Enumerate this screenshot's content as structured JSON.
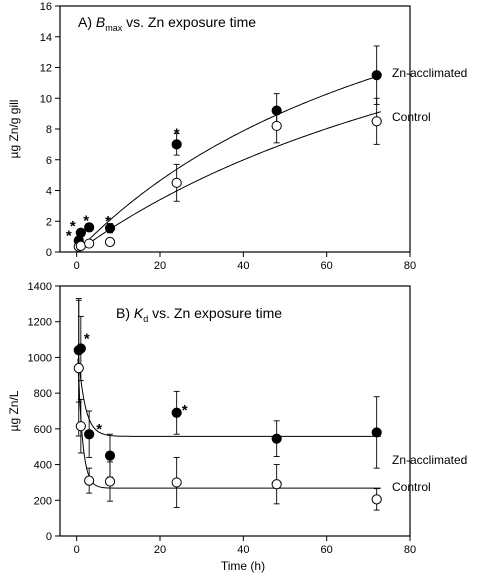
{
  "chart_data": [
    {
      "type": "scatter",
      "title_prefix": "A) ",
      "title_symbol": "B",
      "title_subscript": "max",
      "title_suffix": " vs. Zn exposure time",
      "xlabel": "",
      "ylabel": "µg Zn/g gill",
      "xlim": [
        -4,
        80
      ],
      "ylim": [
        0,
        16
      ],
      "xticks": [
        "0",
        "20",
        "40",
        "60",
        "80"
      ],
      "yticks": [
        "0",
        "2",
        "4",
        "6",
        "8",
        "10",
        "12",
        "14",
        "16"
      ],
      "grid": false,
      "series": [
        {
          "name": "Zn-acclimated",
          "marker": "filled",
          "x": [
            0.5,
            1,
            3,
            8,
            24,
            48,
            72
          ],
          "y": [
            0.75,
            1.25,
            1.6,
            1.55,
            7.0,
            9.2,
            11.5
          ],
          "err": [
            0.15,
            0.2,
            0.25,
            0.3,
            0.7,
            1.1,
            1.9
          ],
          "significant": [
            true,
            true,
            true,
            true,
            true,
            false,
            false
          ],
          "fit": {
            "model": "ymax*x/(k+x)",
            "ymax": 26,
            "k": 92
          }
        },
        {
          "name": "Control",
          "marker": "open",
          "x": [
            0.5,
            1,
            3,
            8,
            24,
            48,
            72
          ],
          "y": [
            0.35,
            0.4,
            0.55,
            0.65,
            4.5,
            8.2,
            8.5
          ],
          "err": [
            0.1,
            0.1,
            0.15,
            0.2,
            1.2,
            1.1,
            1.5
          ],
          "fit": {
            "model": "ymax*x/(k+x)",
            "ymax": 25,
            "k": 127
          }
        }
      ]
    },
    {
      "type": "scatter",
      "title_prefix": "B) ",
      "title_symbol": "K",
      "title_subscript": "d",
      "title_suffix": " vs. Zn exposure time",
      "xlabel": "Time (h)",
      "ylabel": "µg Zn/L",
      "xlim": [
        -4,
        80
      ],
      "ylim": [
        0,
        1400
      ],
      "xticks": [
        "0",
        "20",
        "40",
        "60",
        "80"
      ],
      "yticks": [
        "0",
        "200",
        "400",
        "600",
        "800",
        "1000",
        "1200",
        "1400"
      ],
      "grid": false,
      "series": [
        {
          "name": "Zn-acclimated",
          "marker": "filled",
          "x": [
            0.5,
            1,
            3,
            8,
            24,
            48,
            72
          ],
          "y": [
            1040,
            1050,
            570,
            450,
            690,
            545,
            580
          ],
          "err": [
            290,
            180,
            130,
            120,
            120,
            100,
            200
          ],
          "significant": [
            false,
            true,
            true,
            false,
            true,
            false,
            false
          ],
          "fit": {
            "model": "a+b*exp(-c*x)",
            "a": 558,
            "b": 580,
            "c": 0.6
          }
        },
        {
          "name": "Control",
          "marker": "open",
          "x": [
            0.5,
            1,
            3,
            8,
            24,
            48,
            72
          ],
          "y": [
            940,
            615,
            310,
            305,
            300,
            290,
            205
          ],
          "err": [
            380,
            150,
            70,
            110,
            140,
            110,
            60
          ],
          "fit": {
            "model": "a+b*exp(-c*x)",
            "a": 268,
            "b": 950,
            "c": 0.9
          }
        }
      ]
    }
  ],
  "significance_marker": "*"
}
